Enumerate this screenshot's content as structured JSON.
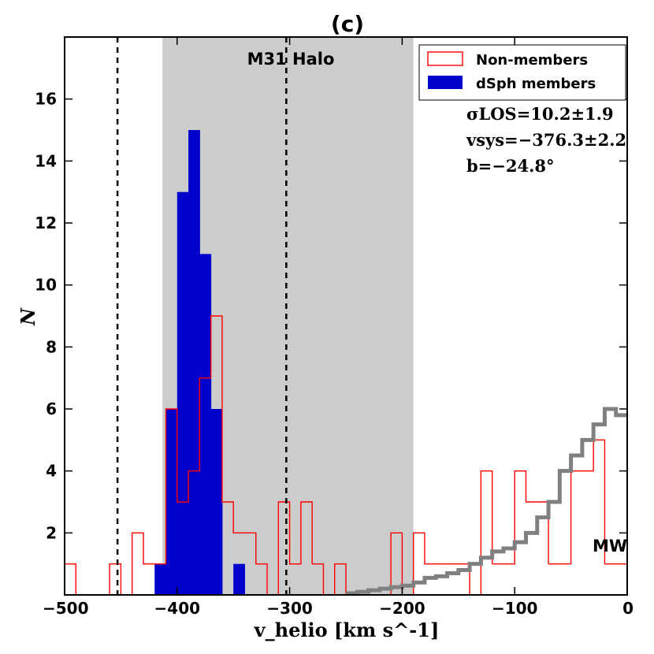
{
  "chart_data": {
    "type": "histogram",
    "title": "(c)",
    "xlabel": "v_helio [km s^-1]",
    "ylabel": "N",
    "xlim": [
      -500,
      0
    ],
    "ylim": [
      0,
      18
    ],
    "x_ticks": [
      -500,
      -400,
      -300,
      -200,
      -100,
      0
    ],
    "x_tick_labels": [
      "−500",
      "−400",
      "−300",
      "−200",
      "−100",
      "0"
    ],
    "y_ticks": [
      2,
      4,
      6,
      8,
      10,
      12,
      14,
      16
    ],
    "y_tick_labels": [
      "2",
      "4",
      "6",
      "8",
      "10",
      "12",
      "14",
      "16"
    ],
    "bin_width": 10,
    "m31_halo_region": {
      "label": "M31 Halo",
      "x_range": [
        -413,
        -190
      ],
      "color": "#cccccc"
    },
    "dashed_lines_x": [
      -453,
      -303
    ],
    "series": [
      {
        "name": "Non-members",
        "style": "step-outline",
        "color": "#ff0000",
        "bin_edges": [
          -500,
          -490,
          -480,
          -470,
          -460,
          -450,
          -440,
          -430,
          -420,
          -410,
          -400,
          -390,
          -380,
          -370,
          -360,
          -350,
          -340,
          -330,
          -320,
          -310,
          -300,
          -290,
          -280,
          -270,
          -260,
          -250,
          -240,
          -230,
          -220,
          -210,
          -200,
          -190,
          -180,
          -170,
          -160,
          -150,
          -140,
          -130,
          -120,
          -110,
          -100,
          -90,
          -80,
          -70,
          -60,
          -50,
          -40,
          -30,
          -20,
          -10,
          0
        ],
        "counts": [
          1,
          0,
          0,
          0,
          1,
          0,
          2,
          1,
          1,
          6,
          3,
          4,
          7,
          9,
          3,
          2,
          2,
          1,
          0,
          3,
          1,
          3,
          1,
          0,
          1,
          0,
          0,
          0,
          0,
          2,
          0,
          2,
          1,
          1,
          1,
          1,
          0,
          4,
          1,
          1,
          4,
          3,
          3,
          1,
          1,
          4,
          4,
          5,
          1,
          1
        ]
      },
      {
        "name": "dSph members",
        "style": "filled",
        "color": "#0000cc",
        "bin_edges": [
          -420,
          -410,
          -400,
          -390,
          -380,
          -370,
          -360,
          -350,
          -340,
          -330
        ],
        "counts": [
          1,
          6,
          13,
          15,
          11,
          6,
          0,
          1,
          0
        ]
      },
      {
        "name": "MW model",
        "style": "step-line",
        "color": "#808080",
        "bin_edges": [
          -250,
          -240,
          -230,
          -220,
          -210,
          -200,
          -190,
          -180,
          -170,
          -160,
          -150,
          -140,
          -130,
          -120,
          -110,
          -100,
          -90,
          -80,
          -70,
          -60,
          -50,
          -40,
          -30,
          -20,
          -10,
          0
        ],
        "counts": [
          0.05,
          0.1,
          0.15,
          0.2,
          0.25,
          0.3,
          0.4,
          0.55,
          0.6,
          0.7,
          0.8,
          1.0,
          1.2,
          1.4,
          1.5,
          1.7,
          2.0,
          2.5,
          3.0,
          4.0,
          4.5,
          5.0,
          5.5,
          6.0,
          5.8
        ]
      }
    ],
    "legend": {
      "position": "top-right",
      "entries": [
        {
          "label": "Non-members",
          "style": "outline",
          "color": "#ff0000"
        },
        {
          "label": "dSph members",
          "style": "filled",
          "color": "#0000cc"
        }
      ]
    },
    "annotations": {
      "sigma": "σLOS=10.2±1.9",
      "vsys": "vsys=−376.3±2.2",
      "b": "b=−24.8°",
      "mw": "MW"
    }
  }
}
